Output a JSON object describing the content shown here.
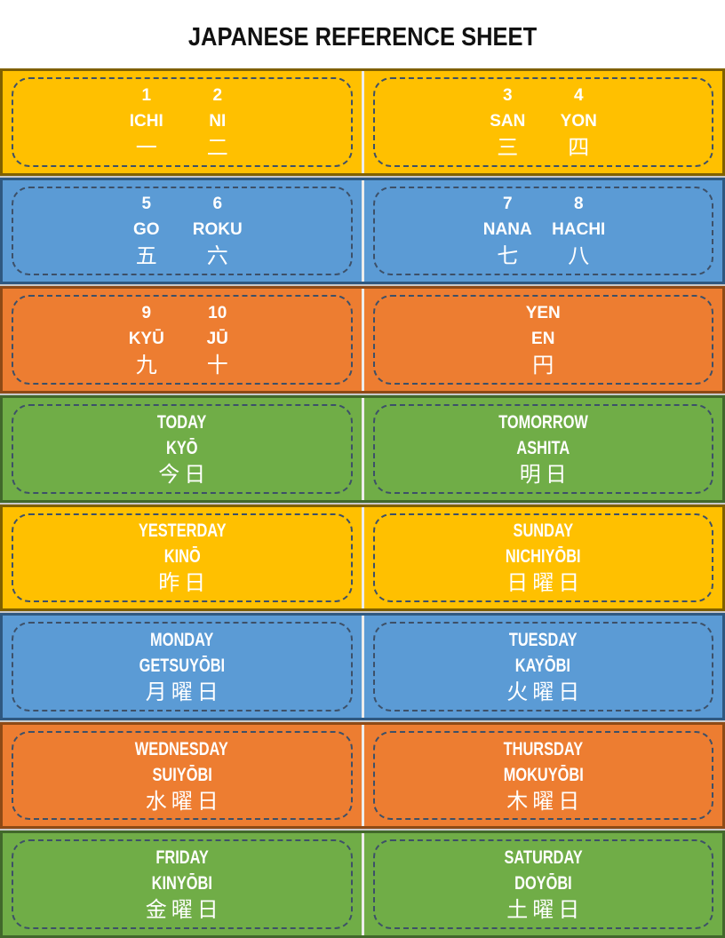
{
  "title": "JAPANESE REFERENCE SHEET",
  "colors": {
    "text": "#FFFFFF",
    "title_text": "#111111",
    "dash_border": "#3D5068",
    "row_gap_line": "#C9C9C9",
    "column_gap_line": "#EDECEA",
    "palette": {
      "yellow": {
        "fill": "#FFC000",
        "edge": "#7F6000"
      },
      "blue": {
        "fill": "#5B9BD5",
        "edge": "#2F5880"
      },
      "orange": {
        "fill": "#ED7D31",
        "edge": "#8E4A16"
      },
      "green": {
        "fill": "#70AD47",
        "edge": "#41682B"
      }
    }
  },
  "rows": [
    {
      "color": "yellow",
      "text_style": "normal",
      "cells": [
        {
          "entries": [
            {
              "label": "1",
              "romaji": "ICHI",
              "kanji": "一"
            },
            {
              "label": "2",
              "romaji": "NI",
              "kanji": "二"
            }
          ]
        },
        {
          "entries": [
            {
              "label": "3",
              "romaji": "SAN",
              "kanji": "三"
            },
            {
              "label": "4",
              "romaji": "YON",
              "kanji": "四"
            }
          ]
        }
      ]
    },
    {
      "color": "blue",
      "text_style": "normal",
      "cells": [
        {
          "entries": [
            {
              "label": "5",
              "romaji": "GO",
              "kanji": "五"
            },
            {
              "label": "6",
              "romaji": "ROKU",
              "kanji": "六"
            }
          ]
        },
        {
          "entries": [
            {
              "label": "7",
              "romaji": "NANA",
              "kanji": "七"
            },
            {
              "label": "8",
              "romaji": "HACHI",
              "kanji": "八"
            }
          ]
        }
      ]
    },
    {
      "color": "orange",
      "text_style": "normal",
      "cells": [
        {
          "entries": [
            {
              "label": "9",
              "romaji": "KYŪ",
              "kanji": "九"
            },
            {
              "label": "10",
              "romaji": "JŪ",
              "kanji": "十"
            }
          ]
        },
        {
          "entries": [
            {
              "label": "YEN",
              "romaji": "EN",
              "kanji": "円"
            }
          ]
        }
      ]
    },
    {
      "color": "green",
      "text_style": "condensed",
      "cells": [
        {
          "entries": [
            {
              "label": "TODAY",
              "romaji": "KYŌ",
              "kanji": "今日"
            }
          ]
        },
        {
          "entries": [
            {
              "label": "TOMORROW",
              "romaji": "ASHITA",
              "kanji": "明日"
            }
          ]
        }
      ]
    },
    {
      "color": "yellow",
      "text_style": "condensed",
      "cells": [
        {
          "entries": [
            {
              "label": "YESTERDAY",
              "romaji": "KINŌ",
              "kanji": "昨日"
            }
          ]
        },
        {
          "entries": [
            {
              "label": "SUNDAY",
              "romaji": "NICHIYŌBI",
              "kanji": "日曜日"
            }
          ]
        }
      ]
    },
    {
      "color": "blue",
      "text_style": "condensed",
      "cells": [
        {
          "entries": [
            {
              "label": "MONDAY",
              "romaji": "GETSUYŌBI",
              "kanji": "月曜日"
            }
          ]
        },
        {
          "entries": [
            {
              "label": "TUESDAY",
              "romaji": "KAYŌBI",
              "kanji": "火曜日"
            }
          ]
        }
      ]
    },
    {
      "color": "orange",
      "text_style": "condensed",
      "cells": [
        {
          "entries": [
            {
              "label": "WEDNESDAY",
              "romaji": "SUIYŌBI",
              "kanji": "水曜日"
            }
          ]
        },
        {
          "entries": [
            {
              "label": "THURSDAY",
              "romaji": "MOKUYŌBI",
              "kanji": "木曜日"
            }
          ]
        }
      ]
    },
    {
      "color": "green",
      "text_style": "condensed",
      "cells": [
        {
          "entries": [
            {
              "label": "FRIDAY",
              "romaji": "KINYŌBI",
              "kanji": "金曜日"
            }
          ]
        },
        {
          "entries": [
            {
              "label": "SATURDAY",
              "romaji": "DOYŌBI",
              "kanji": "土曜日"
            }
          ]
        }
      ]
    }
  ]
}
